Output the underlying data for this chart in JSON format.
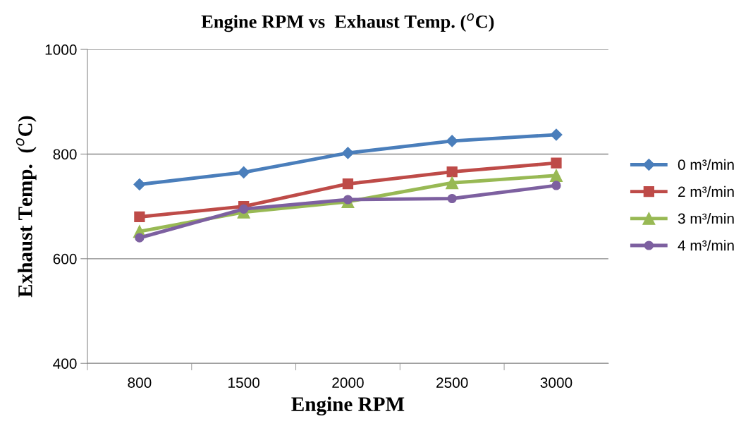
{
  "chart_data": {
    "type": "line",
    "title": "Engine RPM vs  Exhaust Temp. ($^{o}$C)",
    "xlabel": "Engine RPM",
    "ylabel": "Exhaust Temp.  ($^{o}$C)",
    "categories": [
      "800",
      "1500",
      "2000",
      "2500",
      "3000"
    ],
    "series": [
      {
        "name": "0 m³/min",
        "color": "#4a7ebb",
        "marker": "diamond",
        "values": [
          742,
          765,
          802,
          825,
          837
        ]
      },
      {
        "name": "2 m³/min",
        "color": "#be4b48",
        "marker": "square",
        "values": [
          680,
          700,
          743,
          766,
          783
        ]
      },
      {
        "name": "3 m³/min",
        "color": "#98b954",
        "marker": "triangle",
        "values": [
          652,
          689,
          709,
          745,
          759
        ]
      },
      {
        "name": "4 m³/min",
        "color": "#7d60a0",
        "marker": "circle",
        "values": [
          640,
          695,
          713,
          715,
          740
        ]
      }
    ],
    "ylim": [
      400,
      1000
    ],
    "yticks": [
      400,
      600,
      800,
      1000
    ],
    "grid": "y",
    "legend": "right"
  }
}
